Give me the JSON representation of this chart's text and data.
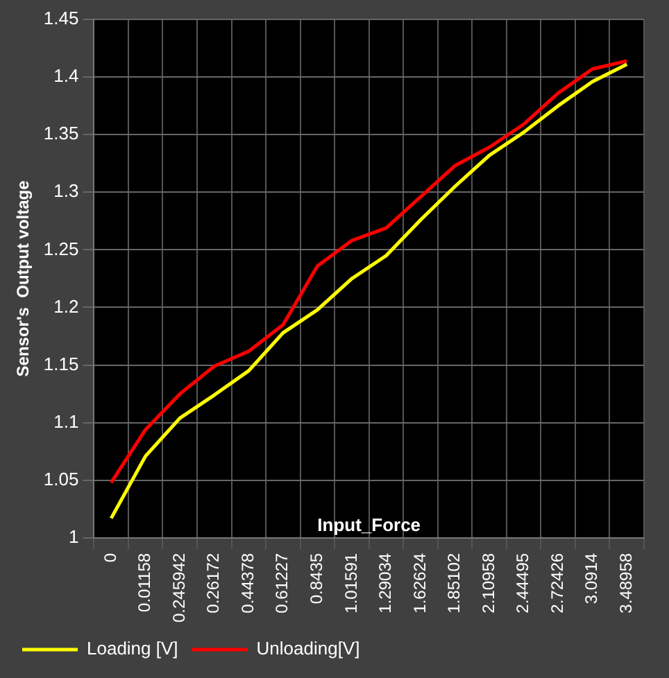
{
  "chart_data": {
    "type": "line",
    "xlabel": "Input_Force",
    "ylabel": "Sensor's  Output voltage",
    "categories": [
      "0",
      "0.01158",
      "0.245942",
      "0.26172",
      "0.44378",
      "0.61227",
      "0.8435",
      "1.01591",
      "1.29034",
      "1.62624",
      "1.85102",
      "2.10958",
      "2.44495",
      "2.72426",
      "3.0914",
      "3.48958"
    ],
    "series": [
      {
        "name": "Loading [V]",
        "color": "#ffff00",
        "values": [
          1.017,
          1.071,
          1.104,
          1.124,
          1.145,
          1.178,
          1.198,
          1.225,
          1.245,
          1.276,
          1.305,
          1.332,
          1.352,
          1.375,
          1.396,
          1.411
        ]
      },
      {
        "name": "Unloading[V]",
        "color": "#ff0000",
        "values": [
          1.048,
          1.094,
          1.125,
          1.149,
          1.162,
          1.185,
          1.236,
          1.258,
          1.269,
          1.296,
          1.323,
          1.339,
          1.359,
          1.386,
          1.407,
          1.414
        ]
      }
    ],
    "ylim": [
      1,
      1.45
    ],
    "yticks": [
      1,
      1.05,
      1.1,
      1.15,
      1.2,
      1.25,
      1.3,
      1.35,
      1.4,
      1.45
    ],
    "grid": true,
    "legend": "bottom left",
    "marker": "none",
    "line_style": "solid"
  }
}
